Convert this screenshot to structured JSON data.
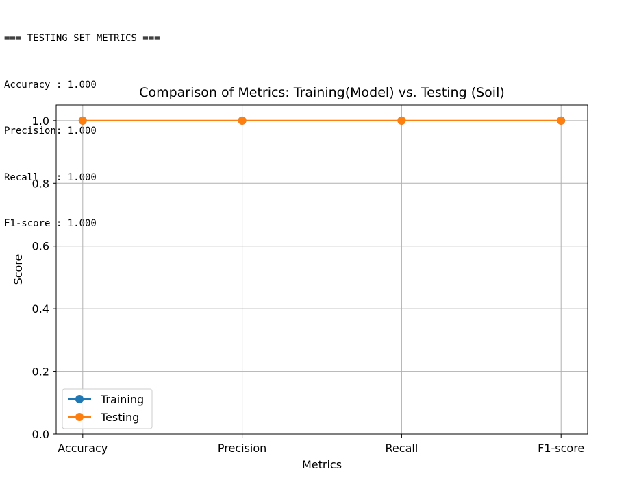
{
  "console": {
    "lines": [
      "=== TESTING SET METRICS ===",
      "Accuracy : 1.000",
      "Precision: 1.000",
      "Recall   : 1.000",
      "F1-score : 1.000"
    ]
  },
  "chart_data": {
    "type": "line",
    "title": "Comparison of Metrics: Training(Model) vs. Testing (Soil)",
    "xlabel": "Metrics",
    "ylabel": "Score",
    "categories": [
      "Accuracy",
      "Precision",
      "Recall",
      "F1-score"
    ],
    "ylim": [
      0,
      1.05
    ],
    "yticks": [
      "0.0",
      "0.2",
      "0.4",
      "0.6",
      "0.8",
      "1.0"
    ],
    "grid": true,
    "legend_position": "lower-left",
    "series": [
      {
        "name": "Training",
        "values": [
          1.0,
          1.0,
          1.0,
          1.0
        ],
        "color": "#1f77b4"
      },
      {
        "name": "Testing",
        "values": [
          1.0,
          1.0,
          1.0,
          1.0
        ],
        "color": "#ff7f0e"
      }
    ]
  }
}
